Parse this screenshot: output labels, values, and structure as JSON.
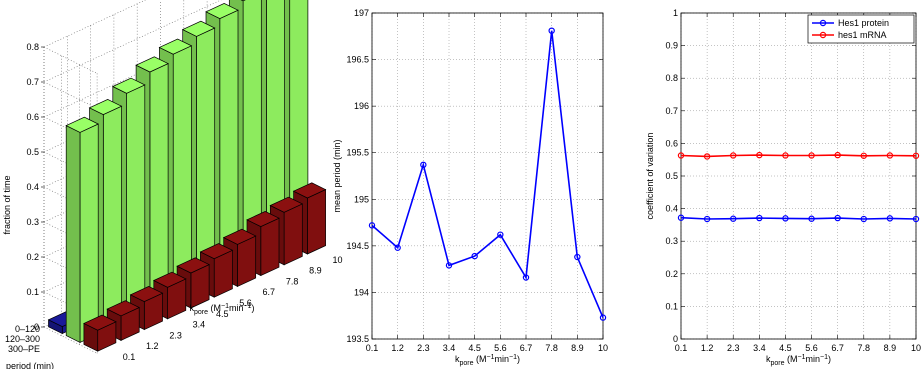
{
  "chart_data": [
    {
      "type": "bar3d",
      "zlabel": "fraction of time",
      "ylabel_main": "period (min)",
      "xlabel_main": "k",
      "xlabel_sub": "pore",
      "xlabel_tail": " (M",
      "xlabel_sup1": "−1",
      "xlabel_mid": "min",
      "xlabel_sup2": "−1",
      "xlabel_end": ")",
      "k_values": [
        "0.1",
        "1.2",
        "2.3",
        "3.4",
        "4.5",
        "5.6",
        "6.7",
        "7.8",
        "8.9",
        "10"
      ],
      "period_bins": [
        "0–120",
        "120–300",
        "300–PE"
      ],
      "z_ticks": [
        "0",
        "0.1",
        "0.2",
        "0.3",
        "0.4",
        "0.5",
        "0.6",
        "0.7",
        "0.8"
      ],
      "zlim": [
        0,
        0.8
      ],
      "series": [
        {
          "bin": "0–120",
          "values": [
            0.02,
            0,
            0,
            0,
            0,
            0,
            0,
            0,
            0,
            0
          ],
          "color": "#1a1a9a"
        },
        {
          "bin": "120–300",
          "values": [
            0.6,
            0.62,
            0.65,
            0.68,
            0.7,
            0.72,
            0.74,
            0.76,
            0.78,
            0.8
          ],
          "color": "#99ff66"
        },
        {
          "bin": "300–PE",
          "values": [
            0.06,
            0.07,
            0.08,
            0.09,
            0.1,
            0.11,
            0.12,
            0.14,
            0.15,
            0.16
          ],
          "color": "#8b1010"
        }
      ]
    },
    {
      "type": "line",
      "ylabel": "mean period (min)",
      "xlabel_main": "k",
      "xlabel_sub": "pore",
      "xlabel_tail": " (M",
      "xlabel_sup1": "−1",
      "xlabel_mid": "min",
      "xlabel_sup2": "−1",
      "xlabel_end": ")",
      "x": [
        0.1,
        1.2,
        2.3,
        3.4,
        4.5,
        5.6,
        6.7,
        7.8,
        8.9,
        10
      ],
      "x_tick_labels": [
        "0.1",
        "1.2",
        "2.3",
        "3.4",
        "4.5",
        "5.6",
        "6.7",
        "7.8",
        "8.9",
        "10"
      ],
      "values": [
        194.72,
        194.48,
        195.37,
        194.29,
        194.39,
        194.62,
        194.16,
        196.81,
        194.38,
        193.73
      ],
      "ylim": [
        193.5,
        197
      ],
      "y_ticks": [
        193.5,
        194,
        194.5,
        195,
        195.5,
        196,
        196.5,
        197
      ],
      "y_tick_labels": [
        "193.5",
        "194",
        "194.5",
        "195",
        "195.5",
        "196",
        "196.5",
        "197"
      ],
      "grid": true,
      "color": "#0000ff"
    },
    {
      "type": "line",
      "ylabel": "coefficient of variation",
      "xlabel_main": "k",
      "xlabel_sub": "pore",
      "xlabel_tail": " (M",
      "xlabel_sup1": "−1",
      "xlabel_mid": "min",
      "xlabel_sup2": "−1",
      "xlabel_end": ")",
      "x": [
        0.1,
        1.2,
        2.3,
        3.4,
        4.5,
        5.6,
        6.7,
        7.8,
        8.9,
        10
      ],
      "x_tick_labels": [
        "0.1",
        "1.2",
        "2.3",
        "3.4",
        "4.5",
        "5.6",
        "6.7",
        "7.8",
        "8.9",
        "10"
      ],
      "ylim": [
        0,
        1
      ],
      "y_ticks": [
        0,
        0.1,
        0.2,
        0.3,
        0.4,
        0.5,
        0.6,
        0.7,
        0.8,
        0.9,
        1
      ],
      "y_tick_labels": [
        "0",
        "0.1",
        "0.2",
        "0.3",
        "0.4",
        "0.5",
        "0.6",
        "0.7",
        "0.8",
        "0.9",
        "1"
      ],
      "grid": true,
      "legend_placement": "top-right",
      "series": [
        {
          "name": "Hes1 protein",
          "values": [
            0.372,
            0.368,
            0.369,
            0.371,
            0.37,
            0.369,
            0.371,
            0.368,
            0.37,
            0.368
          ],
          "color": "#0000ff"
        },
        {
          "name": "hes1 mRNA",
          "values": [
            0.563,
            0.56,
            0.563,
            0.564,
            0.563,
            0.563,
            0.564,
            0.562,
            0.563,
            0.562
          ],
          "color": "#ff0000"
        }
      ]
    }
  ]
}
